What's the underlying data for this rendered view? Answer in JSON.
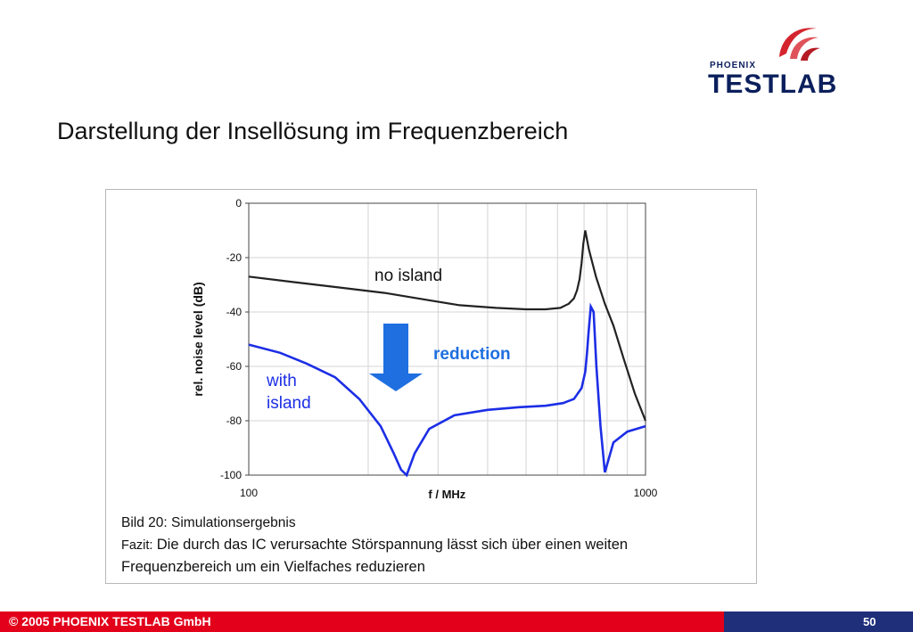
{
  "logo": {
    "small": "PHOENIX",
    "main": "TESTLAB",
    "icon": "phoenix-wing-logo-icon",
    "colors": {
      "mark": "#d4242e",
      "text": "#0b1f5c"
    }
  },
  "slide": {
    "title": "Darstellung der Insellösung im Frequenzbereich"
  },
  "chart_data": {
    "type": "line",
    "xscale": "log",
    "xlim": [
      100,
      1000
    ],
    "ylim": [
      -100,
      0
    ],
    "xlabel": "f / MHz",
    "ylabel": "rel. noise level (dB)",
    "x_tick_labels": [
      "100",
      "1000"
    ],
    "y_ticks": [
      0,
      -20,
      -40,
      -60,
      -80,
      -100
    ],
    "y_tick_labels": [
      "0",
      "-20",
      "-40",
      "-60",
      "-80",
      "-100"
    ],
    "grid": true,
    "series": [
      {
        "name": "no island",
        "color": "#222222",
        "x": [
          100,
          130,
          170,
          220,
          280,
          340,
          420,
          500,
          560,
          610,
          640,
          660,
          672,
          682,
          690,
          697,
          705,
          720,
          750,
          790,
          830,
          880,
          940,
          1000
        ],
        "y": [
          -27,
          -29,
          -31,
          -33,
          -35.5,
          -37.5,
          -38.5,
          -39,
          -39,
          -38.5,
          -37,
          -35,
          -32,
          -28,
          -22,
          -15,
          -10,
          -17,
          -27,
          -37,
          -45,
          -57,
          -70,
          -80
        ]
      },
      {
        "name": "with island",
        "color": "#1c2ee6",
        "x": [
          100,
          120,
          140,
          165,
          190,
          215,
          232,
          242,
          250,
          262,
          285,
          330,
          400,
          480,
          560,
          620,
          660,
          690,
          705,
          712,
          718,
          728,
          740,
          752,
          770,
          790,
          830,
          900,
          1000
        ],
        "y": [
          -52,
          -55,
          -59,
          -64,
          -72,
          -82,
          -92,
          -98,
          -100,
          -92,
          -83,
          -78,
          -76,
          -75,
          -74.5,
          -73.5,
          -72,
          -68,
          -62,
          -55,
          -48,
          -38,
          -40,
          -60,
          -82,
          -99,
          -88,
          -84,
          -82
        ]
      }
    ],
    "annotations": {
      "no_island": "no island",
      "reduction": "reduction",
      "with_island_l1": "with",
      "with_island_l2": "island"
    },
    "colors": {
      "reduction_arrow": "#1f6fe0",
      "reduction_text": "#1f6fe0",
      "with_island_text": "#1c2ee6"
    }
  },
  "caption": {
    "line1": "Bild 20: Simulationsergebnis",
    "fazit_label": "Fazit:",
    "fazit_text": "Die durch das IC verursachte Störspannung lässt sich über einen weiten",
    "line3": "Frequenzbereich um ein Vielfaches reduzieren"
  },
  "footer": {
    "copyright": "© 2005 PHOENIX TESTLAB GmbH",
    "page": "50",
    "colors": {
      "bar": "#e2001a",
      "accent": "#1f2f7a"
    }
  }
}
